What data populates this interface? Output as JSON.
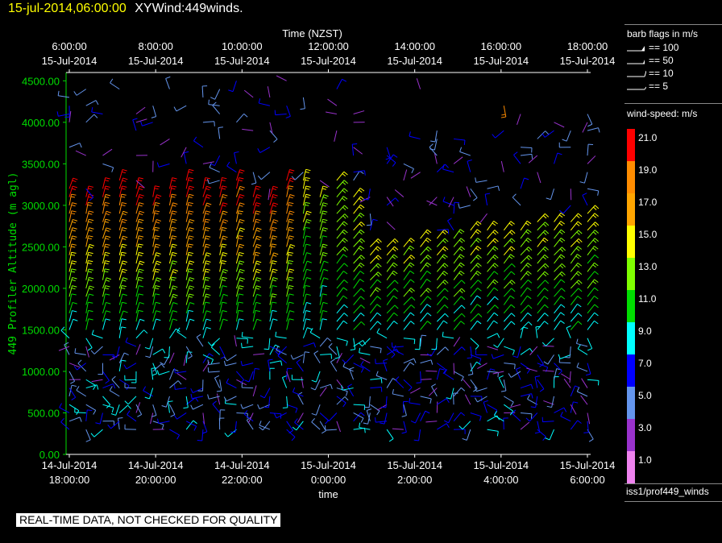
{
  "header": {
    "timestamp": "15-jul-2014,06:00:00",
    "title": "XYWind:449winds."
  },
  "footer": {
    "warning": "REAL-TIME DATA, NOT CHECKED FOR QUALITY"
  },
  "legend": {
    "flags_title": "barb flags in m/s",
    "flags": [
      {
        "label": "== 100",
        "value": 100
      },
      {
        "label": "== 50",
        "value": 50
      },
      {
        "label": "== 10",
        "value": 10
      },
      {
        "label": "== 5",
        "value": 5
      }
    ],
    "speed_title": "wind-speed: m/s",
    "scale": [
      {
        "label": "21.0",
        "color": "#ff0000"
      },
      {
        "label": "19.0",
        "color": "#ff8c00"
      },
      {
        "label": "17.0",
        "color": "#ffa500"
      },
      {
        "label": "15.0",
        "color": "#ffff00"
      },
      {
        "label": "13.0",
        "color": "#7fff00"
      },
      {
        "label": "11.0",
        "color": "#00dd00"
      },
      {
        "label": "9.0",
        "color": "#00ffff"
      },
      {
        "label": "7.0",
        "color": "#0000ff"
      },
      {
        "label": "5.0",
        "color": "#6495ed"
      },
      {
        "label": "3.0",
        "color": "#9932cc"
      },
      {
        "label": "1.0",
        "color": "#ee82ee"
      }
    ],
    "source": "iss1/prof449_winds"
  },
  "chart_data": {
    "type": "scatter",
    "title": "",
    "xlabel": "time",
    "xlabel_top": "Time (NZST)",
    "ylabel": "449 Profiler Altitude (m agl)",
    "ylim": [
      0,
      4600
    ],
    "yticks": [
      "0.00",
      "500.00",
      "1000.00",
      "1500.00",
      "2000.00",
      "2500.00",
      "3000.00",
      "3500.00",
      "4000.00",
      "4500.00"
    ],
    "xticks_bottom": [
      [
        "14-Jul-2014",
        "18:00:00"
      ],
      [
        "14-Jul-2014",
        "20:00:00"
      ],
      [
        "14-Jul-2014",
        "22:00:00"
      ],
      [
        "15-Jul-2014",
        "0:00:00"
      ],
      [
        "15-Jul-2014",
        "2:00:00"
      ],
      [
        "15-Jul-2014",
        "4:00:00"
      ],
      [
        "15-Jul-2014",
        "6:00:00"
      ]
    ],
    "xticks_top": [
      [
        "6:00:00",
        "15-Jul-2014"
      ],
      [
        "8:00:00",
        "15-Jul-2014"
      ],
      [
        "10:00:00",
        "15-Jul-2014"
      ],
      [
        "12:00:00",
        "15-Jul-2014"
      ],
      [
        "14:00:00",
        "15-Jul-2014"
      ],
      [
        "16:00:00",
        "15-Jul-2014"
      ],
      [
        "18:00:00",
        "15-Jul-2014"
      ]
    ],
    "x_start": "14-Jul-2014 18:00:00",
    "x_end": "15-Jul-2014 06:00:00",
    "grid": false,
    "series": [
      {
        "description": "wind barbs, colored by speed (m/s)",
        "profiles_count": 32,
        "speed_range_ms": [
          1,
          21
        ]
      }
    ]
  }
}
